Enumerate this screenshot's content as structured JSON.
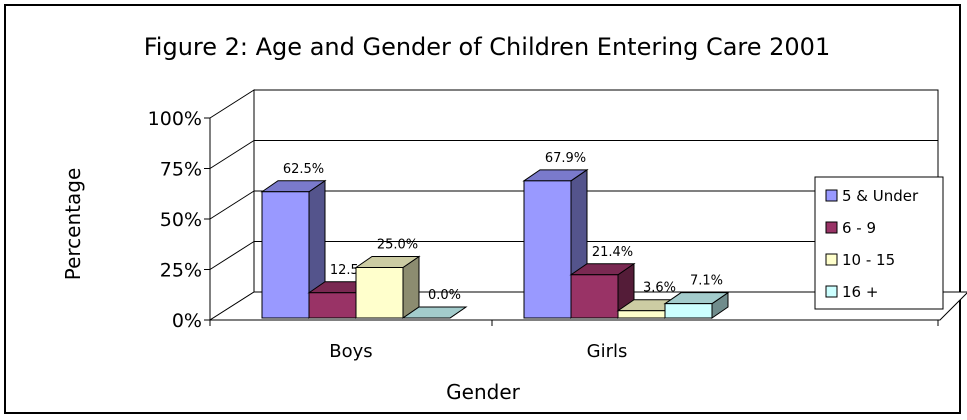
{
  "chart_data": {
    "type": "bar",
    "title": "Figure 2: Age and Gender of Children Entering Care 2001",
    "xlabel": "Gender",
    "ylabel": "Percentage",
    "ylim": [
      0,
      100
    ],
    "yticks": [
      "0%",
      "25%",
      "50%",
      "75%",
      "100%"
    ],
    "yticks_values": [
      0,
      25,
      50,
      75,
      100
    ],
    "categories": [
      "Boys",
      "Girls"
    ],
    "series": [
      {
        "name": "5 & Under",
        "values": [
          62.5,
          67.9
        ],
        "labels": [
          "62.5%",
          "67.9%"
        ],
        "color": "#9999FF"
      },
      {
        "name": "6 - 9",
        "values": [
          12.5,
          21.4
        ],
        "labels": [
          "12.5%",
          "21.4%"
        ],
        "color": "#993366"
      },
      {
        "name": "10 - 15",
        "values": [
          25.0,
          3.6
        ],
        "labels": [
          "25.0%",
          "3.6%"
        ],
        "color": "#FFFFCC"
      },
      {
        "name": "16 +",
        "values": [
          0.0,
          7.1
        ],
        "labels": [
          "0.0%",
          "7.1%"
        ],
        "color": "#CCFFFF"
      }
    ],
    "grid": true,
    "legend": "right",
    "style": "3d"
  }
}
